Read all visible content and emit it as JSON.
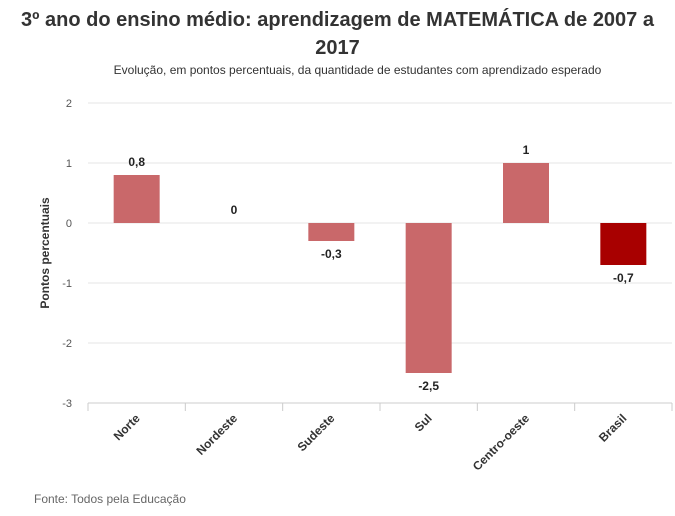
{
  "title": "3º ano do ensino médio: aprendizagem de MATEMÁTICA de 2007 a 2017",
  "subtitle": "Evolução, em pontos percentuais, da quantidade de estudantes com aprendizado esperado",
  "source": "Fonte: Todos pela Educação",
  "chart_data": {
    "type": "bar",
    "categories": [
      "Norte",
      "Nordeste",
      "Sudeste",
      "Sul",
      "Centro-oeste",
      "Brasil"
    ],
    "values": [
      0.8,
      0,
      -0.3,
      -2.5,
      1,
      -0.7
    ],
    "data_labels": [
      "0,8",
      "0",
      "-0,3",
      "-2,5",
      "1",
      "-0,7"
    ],
    "ylabel": "Pontos percentuais",
    "xlabel": "",
    "ylim": [
      -3,
      2
    ],
    "yticks": [
      2,
      1,
      0,
      -1,
      -2,
      -3
    ],
    "ytick_labels": [
      "2",
      "1",
      "0",
      "-1",
      "-2",
      "-3"
    ],
    "colors": [
      "#c9686a",
      "#c9686a",
      "#c9686a",
      "#c9686a",
      "#c9686a",
      "#a80000"
    ],
    "grid": true
  }
}
